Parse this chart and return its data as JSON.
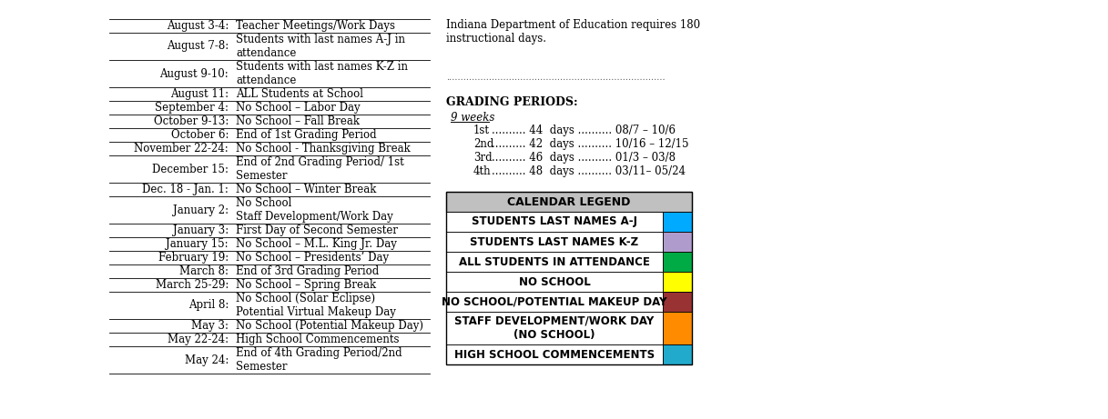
{
  "title_note": "Indiana Department of Education requires 180\ninstructional days.",
  "dotted_line": ".............................................................................",
  "grading_title": "GRADING PERIODS:",
  "grading_sub": "9 weeks",
  "grading_periods": [
    {
      "label": "1st",
      "days": "44",
      "range": "08/7 – 10/6"
    },
    {
      "label": "2nd",
      "days": "42",
      "range": "10/16 – 12/15"
    },
    {
      "label": "3rd",
      "days": "46",
      "range": "01/3 – 03/8"
    },
    {
      "label": "4th",
      "days": "48",
      "range": "03/11– 05/24"
    }
  ],
  "calendar_rows": [
    {
      "date": "August 3-4:",
      "desc": "Teacher Meetings/Work Days"
    },
    {
      "date": "August 7-8:",
      "desc": "Students with last names A-J in\nattendance"
    },
    {
      "date": "August 9-10:",
      "desc": "Students with last names K-Z in\nattendance"
    },
    {
      "date": "August 11:",
      "desc": "ALL Students at School"
    },
    {
      "date": "September 4:",
      "desc": "No School – Labor Day"
    },
    {
      "date": "October 9-13:",
      "desc": "No School – Fall Break"
    },
    {
      "date": "October 6:",
      "desc": "End of 1st Grading Period"
    },
    {
      "date": "November 22-24:",
      "desc": "No School - Thanksgiving Break"
    },
    {
      "date": "December 15:",
      "desc": "End of 2nd Grading Period/ 1st\nSemester"
    },
    {
      "date": "Dec. 18 - Jan. 1:",
      "desc": "No School – Winter Break"
    },
    {
      "date": "January 2:",
      "desc": "No School\nStaff Development/Work Day"
    },
    {
      "date": "January 3:",
      "desc": "First Day of Second Semester"
    },
    {
      "date": "January 15:",
      "desc": "No School – M.L. King Jr. Day"
    },
    {
      "date": "February 19:",
      "desc": "No School – Presidents’ Day"
    },
    {
      "date": "March 8:",
      "desc": "End of 3rd Grading Period"
    },
    {
      "date": "March 25-29:",
      "desc": "No School – Spring Break"
    },
    {
      "date": "April 8:",
      "desc": "No School (Solar Eclipse)\nPotential Virtual Makeup Day"
    },
    {
      "date": "May 3:",
      "desc": "No School (Potential Makeup Day)"
    },
    {
      "date": "May 22-24:",
      "desc": "High School Commencements"
    },
    {
      "date": "May 24:",
      "desc": "End of 4th Grading Period/2nd\nSemester"
    }
  ],
  "legend_title": "CALENDAR LEGEND",
  "legend_header_bg": "#c0c0c0",
  "legend_rows": [
    {
      "label": "STUDENTS LAST NAMES A-J",
      "color": "#00aaff"
    },
    {
      "label": "STUDENTS LAST NAMES K-Z",
      "color": "#b09ccc"
    },
    {
      "label": "ALL STUDENTS IN ATTENDANCE",
      "color": "#00aa44"
    },
    {
      "label": "NO SCHOOL",
      "color": "#ffff00"
    },
    {
      "label": "NO SCHOOL/POTENTIAL MAKEUP DAY",
      "color": "#993333"
    },
    {
      "label": "STAFF DEVELOPMENT/WORK DAY\n(NO SCHOOL)",
      "color": "#ff8c00"
    },
    {
      "label": "HIGH SCHOOL COMMENCEMENTS",
      "color": "#22aacc"
    }
  ],
  "bg_color": "#ffffff",
  "text_color": "#000000",
  "font_size": 8.5,
  "legend_font_size": 8.5
}
